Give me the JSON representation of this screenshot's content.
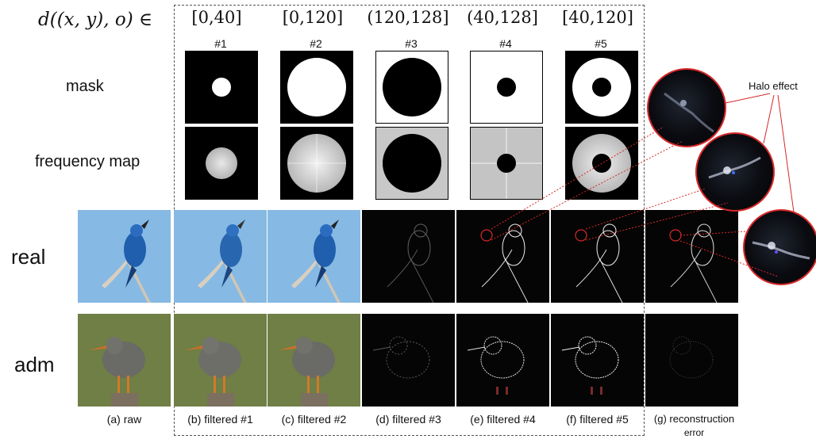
{
  "formula": "d((x, y), o) ∈",
  "ranges": [
    "[0,40]",
    "[0,120]",
    "(120,128]",
    "(40,128]",
    "[40,120]"
  ],
  "indices": [
    "#1",
    "#2",
    "#3",
    "#4",
    "#5"
  ],
  "row_labels": {
    "mask": "mask",
    "frequency_map": "frequency map",
    "real": "real",
    "adm": "adm"
  },
  "captions": [
    "(a) raw",
    "(b) filtered #1",
    "(c) filtered #2",
    "(d) filtered #3",
    "(e) filtered #4",
    "(f) filtered #5",
    "(g) reconstruction"
  ],
  "caption_g_line2": "error",
  "halo_label": "Halo effect",
  "colors": {
    "sky": "#86b9e3",
    "bird_blue": "#1f5fae",
    "green_bg": "#6f7f45",
    "halo_red": "#d62828"
  }
}
